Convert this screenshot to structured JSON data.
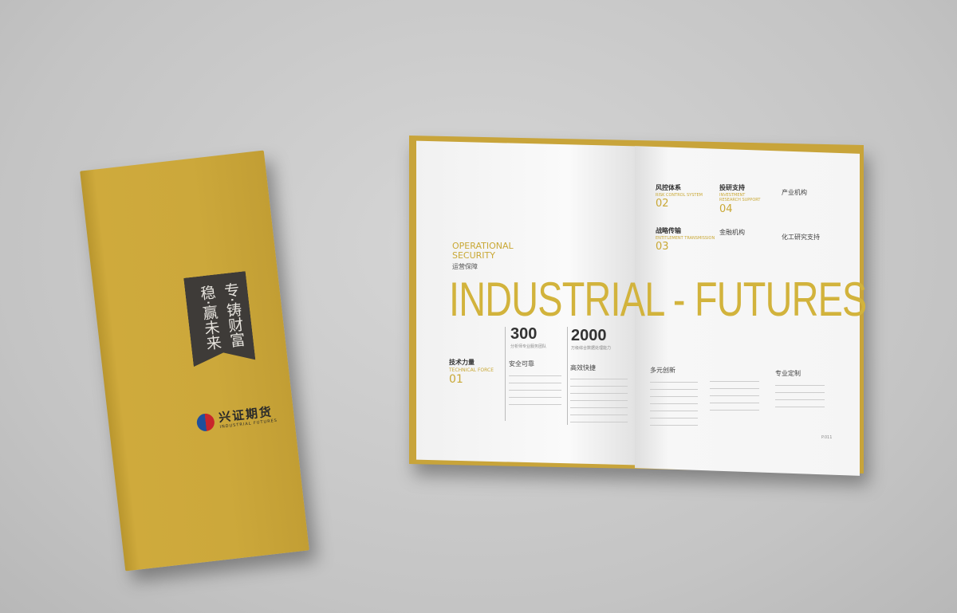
{
  "cover": {
    "slogan_right": "专·铸财富",
    "slogan_left": "稳·赢未来",
    "logo_cn": "兴证期货",
    "logo_en": "INDUSTRIAL FUTURES"
  },
  "spread": {
    "headline": "INDUSTRIAL - FUTURES",
    "section_en": "OPERATIONAL SECURITY",
    "section_cn": "运营保障",
    "stats": [
      {
        "value": "300",
        "caption": "分析师专业服务团队"
      },
      {
        "value": "2000",
        "caption": "万级综合数据处理能力"
      }
    ],
    "tech": {
      "cn": "技术力量",
      "en": "TECHNICAL FORCE",
      "num": "01"
    },
    "col1_title": "安全可靠",
    "col2_title": "高效快捷",
    "risk": {
      "cn": "风控体系",
      "en": "RISK CONTROL SYSTEM",
      "num": "02"
    },
    "invest": {
      "cn": "投研支持",
      "en": "INVESTMENT RESEARCH SUPPORT",
      "num": "04"
    },
    "trans": {
      "cn": "战略传输",
      "en": "ENTITLEMENT TRANSMISSION",
      "num": "03"
    },
    "r_items": [
      "产业机构",
      "金融机构",
      "化工研究支持"
    ],
    "r_bottom": [
      "多元创新",
      "专业定制"
    ],
    "page_no": "P.011"
  }
}
